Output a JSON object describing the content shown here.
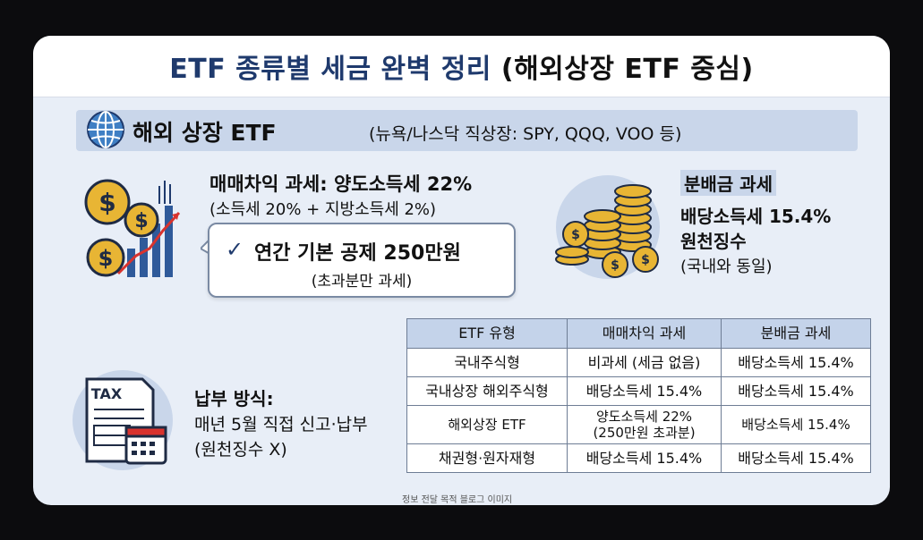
{
  "title": {
    "main": "ETF 종류별 세금 완벽 정리",
    "sub": "(해외상장 ETF 중심)"
  },
  "section": {
    "icon": "globe-icon",
    "title": "해외 상장 ETF",
    "subtitle": "(뉴욕/나스닥 직상장: SPY, QQQ, VOO 등)"
  },
  "capital_gains": {
    "icon": "coins-chart-icon",
    "heading": "매매차익 과세: 양도소득세 22%",
    "detail": "(소득세 20% + 지방소득세 2%)",
    "callout_check": "✓",
    "callout_main": "연간 기본 공제 250만원",
    "callout_note": "(초과분만 과세)"
  },
  "dividend": {
    "icon": "coin-stacks-icon",
    "heading": "분배금 과세",
    "line1": "배당소득세 15.4%",
    "line2": "원천징수",
    "line3": "(국내와 동일)"
  },
  "payment": {
    "icon": "tax-form-calendar-icon",
    "tax_label": "TAX",
    "heading": "납부 방식:",
    "line1": "매년 5월 직접 신고·납부",
    "line2": "(원천징수 X)"
  },
  "table": {
    "headers": [
      "ETF 유형",
      "매매차익 과세",
      "분배금 과세"
    ],
    "rows": [
      {
        "type": "국내주식형",
        "gain": "비과세 (세금 없음)",
        "gain_note": "",
        "dist": "배당소득세 15.4%"
      },
      {
        "type": "국내상장 해외주식형",
        "gain": "배당소득세 15.4%",
        "gain_note": "",
        "dist": "배당소득세 15.4%"
      },
      {
        "type": "해외상장 ETF",
        "gain": "양도소득세 22%",
        "gain_note": "(250만원 초과분)",
        "dist": "배당소득세 15.4%"
      },
      {
        "type": "채권형·원자재형",
        "gain": "배당소득세 15.4%",
        "gain_note": "",
        "dist": "배당소득세 15.4%"
      }
    ]
  },
  "footer_note": "정보 전달 목적 블로그 이미지",
  "colors": {
    "title_blue": "#1f3a6d",
    "section_bar": "#c9d6ea",
    "card_bg": "#e8eef7",
    "table_header": "#c4d3ea",
    "coin_gold": "#e8b534"
  }
}
